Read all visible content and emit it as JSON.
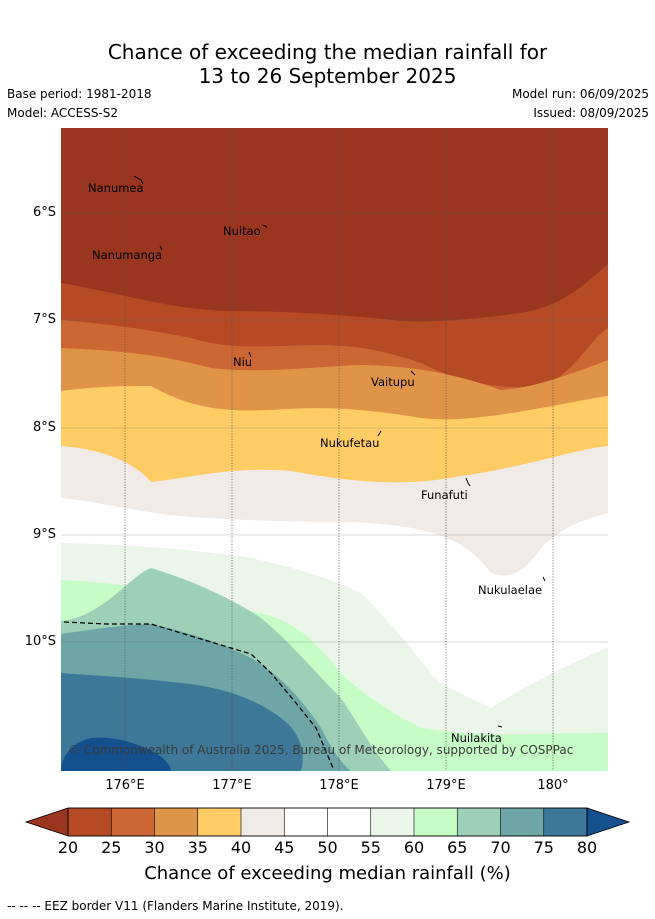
{
  "title_line1": "Chance of exceeding the median rainfall for",
  "title_line2": "13 to 26 September 2025",
  "base_period": "Base period: 1981-2018",
  "model": "Model: ACCESS-S2",
  "model_run": "Model run: 06/09/2025",
  "issued": "Issued: 08/09/2025",
  "copyright": "© Commonwealth of Australia 2025, Bureau of Meteorology, supported by COSPPac",
  "lat_labels": [
    "6°S",
    "7°S",
    "8°S",
    "9°S",
    "10°S"
  ],
  "lon_labels": [
    "176°E",
    "177°E",
    "178°E",
    "179°E",
    "180°"
  ],
  "places": [
    "Nanumea",
    "Nuitao",
    "Nanumanga",
    "Niu",
    "Vaitupu",
    "Nukufetau",
    "Funafuti",
    "Nukulaelae",
    "Nuilakita"
  ],
  "colorbar": {
    "title": "Chance of exceeding median rainfall (%)",
    "ticks": [
      "20",
      "25",
      "30",
      "35",
      "40",
      "45",
      "50",
      "55",
      "60",
      "65",
      "70",
      "75",
      "80"
    ],
    "colors": [
      "#b54a25",
      "#cc6633",
      "#e09448",
      "#ffcc66",
      "#f0ebe6",
      "#ffffff",
      "#ffffff",
      "#ebf5ea",
      "#c6fdc6",
      "#9ed0b8",
      "#6ea6a8",
      "#3e7898"
    ],
    "low_color": "#9a3520",
    "high_color": "#15508e"
  },
  "footer": "-- -- -- EEZ border V11 (Flanders Marine Institute, 2019)."
}
